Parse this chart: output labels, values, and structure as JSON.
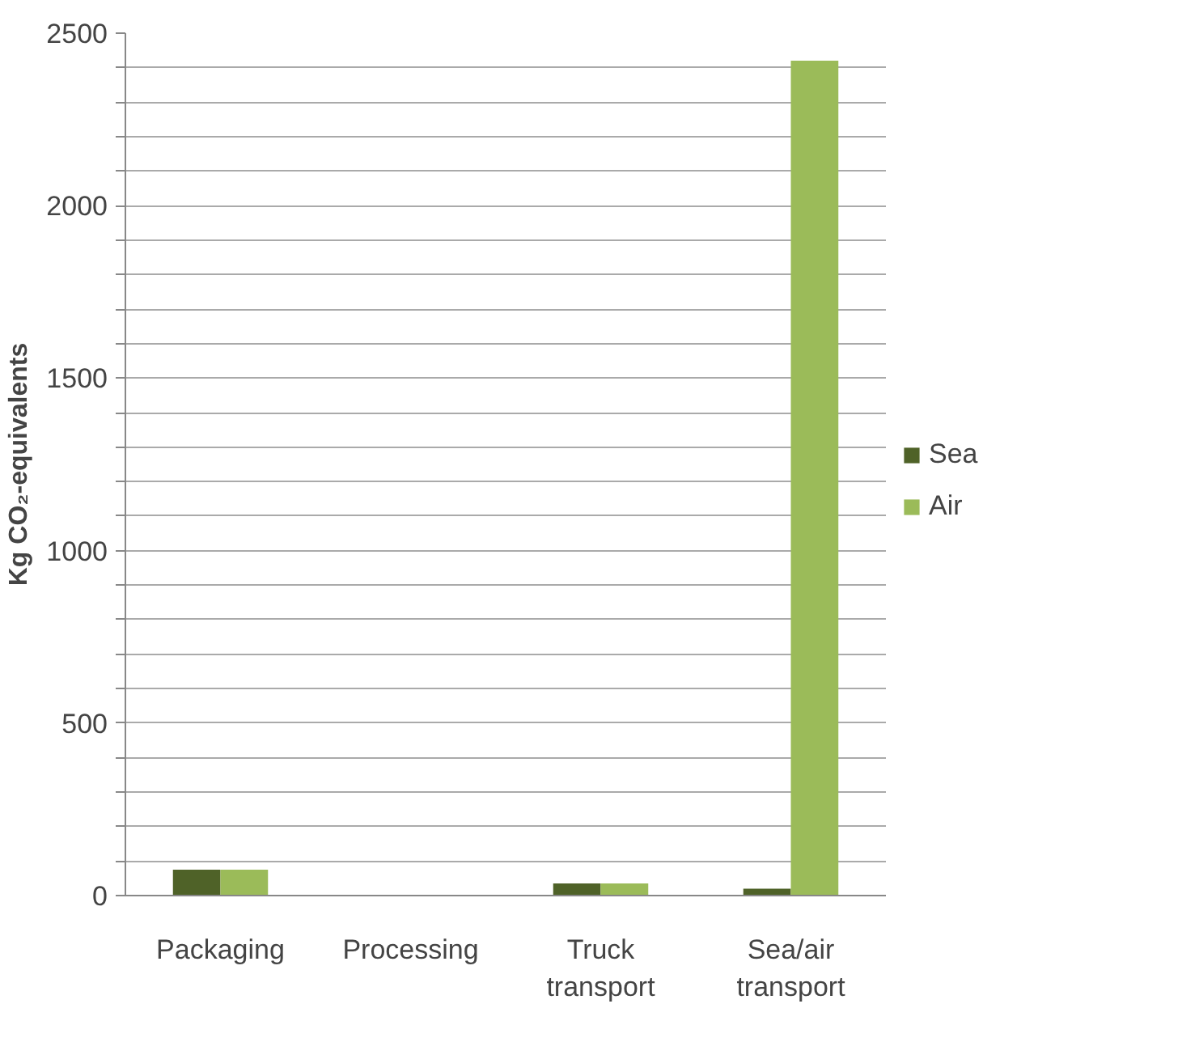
{
  "chart_data": {
    "type": "bar",
    "ylabel": "Kg CO₂-equivalents",
    "categories": [
      "Packaging",
      "Processing",
      "Truck transport",
      "Sea/air transport"
    ],
    "series": [
      {
        "name": "Sea",
        "color": "#4f6228",
        "values": [
          75,
          1,
          35,
          20
        ]
      },
      {
        "name": "Air",
        "color": "#9bbb59",
        "values": [
          75,
          1,
          35,
          2420
        ]
      }
    ],
    "ylim": [
      0,
      2500
    ],
    "yticks": [
      0,
      {
        "value": 100,
        "label": null
      },
      {
        "value": 200,
        "label": null
      },
      {
        "value": 300,
        "label": null
      },
      {
        "value": 400,
        "label": null
      },
      500,
      {
        "value": 600,
        "label": null
      },
      {
        "value": 700,
        "label": null
      },
      {
        "value": 800,
        "label": null
      },
      {
        "value": 900,
        "label": null
      },
      1000,
      {
        "value": 1100,
        "label": null
      },
      {
        "value": 1200,
        "label": null
      },
      {
        "value": 1300,
        "label": null
      },
      {
        "value": 1400,
        "label": null
      },
      1500,
      {
        "value": 1600,
        "label": null
      },
      {
        "value": 1700,
        "label": null
      },
      {
        "value": 1800,
        "label": null
      },
      {
        "value": 1900,
        "label": null
      },
      2000,
      {
        "value": 2100,
        "label": null
      },
      {
        "value": 2200,
        "label": null
      },
      {
        "value": 2300,
        "label": null
      },
      {
        "value": 2400,
        "label": null
      },
      2500
    ],
    "grid": "y",
    "legend": "right"
  }
}
